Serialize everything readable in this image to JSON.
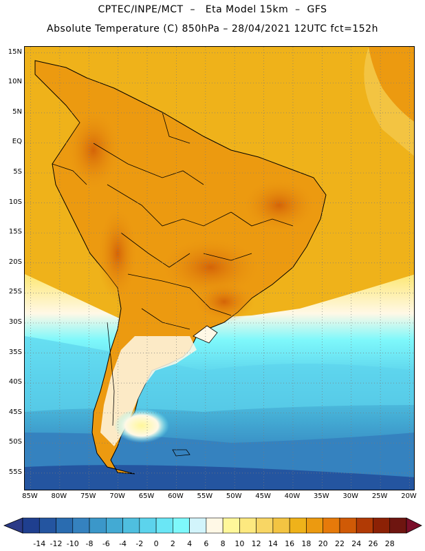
{
  "header": {
    "title_line1": "CPTEC/INPE/MCT  –   Eta Model 15km  –  GFS",
    "title_line2": "Absolute Temperature (C) 850hPa – 28/04/2021 12UTC fct=152h"
  },
  "map": {
    "lat_labels": [
      "15N",
      "10N",
      "5N",
      "EQ",
      "5S",
      "10S",
      "15S",
      "20S",
      "25S",
      "30S",
      "35S",
      "40S",
      "45S",
      "50S",
      "55S"
    ],
    "lon_labels": [
      "85W",
      "80W",
      "75W",
      "70W",
      "65W",
      "60W",
      "55W",
      "50W",
      "45W",
      "40W",
      "35W",
      "30W",
      "25W",
      "20W"
    ],
    "extent": {
      "lon_min": -86,
      "lon_max": -19,
      "lat_min": -58,
      "lat_max": 16
    },
    "gridlines": "dotted",
    "regions": [
      {
        "name": "warm-tropics",
        "level": 18
      },
      {
        "name": "andes-hotspot",
        "level": 20
      },
      {
        "name": "central-brazil",
        "level": 20
      },
      {
        "name": "southern-cone",
        "level": 6
      },
      {
        "name": "south-atlantic",
        "level": 2
      },
      {
        "name": "far-south",
        "level": -6
      }
    ]
  },
  "colorbar": {
    "labels": [
      "-14",
      "-12",
      "-10",
      "-8",
      "-6",
      "-4",
      "-2",
      "0",
      "2",
      "4",
      "6",
      "8",
      "10",
      "12",
      "14",
      "16",
      "18",
      "20",
      "22",
      "24",
      "26",
      "28"
    ],
    "colors": [
      "#1f3f8f",
      "#2455a0",
      "#2a6cb0",
      "#3582bf",
      "#3b97c9",
      "#43aad3",
      "#4fbfdf",
      "#5cd3ec",
      "#6ae6f5",
      "#7ef8fb",
      "#d2f4fb",
      "#fff8e6",
      "#fff79a",
      "#fde97f",
      "#f8d664",
      "#f3c442",
      "#efb21a",
      "#ec9a10",
      "#e67a0a",
      "#d05a06",
      "#b13a05",
      "#8c2105",
      "#6e1510"
    ],
    "left_arrow_color": "#2b3a87",
    "right_arrow_color": "#7a0f2a"
  }
}
